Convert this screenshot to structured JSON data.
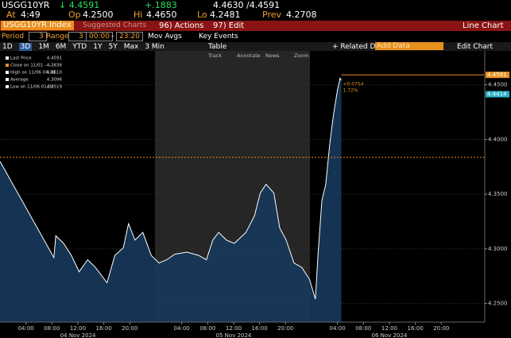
{
  "header": {
    "ticker": "USGG10YR",
    "price": "↓ 4.4591",
    "change": "+.1883",
    "bid_ask": "4.4630 /4.4591",
    "at_label": "At",
    "at": "4:49",
    "open_label": "Op",
    "open": "4.2500",
    "high_label": "Hi",
    "high": "4.4650",
    "low_label": "Lo",
    "low": "4.2481",
    "prev_label": "Prev",
    "prev": "4.2708"
  },
  "menu": {
    "security": "USGG10YR Index",
    "suggested": "Suggested Charts",
    "actions": "96) Actions",
    "edit": "97) Edit",
    "chart_type": "Line Chart"
  },
  "controls": {
    "period_label": "Period",
    "period": "3",
    "range_label": "Range",
    "range": "3",
    "start": "00:00",
    "dash": "-",
    "end": "23:20",
    "mov_avgs": "Mov Avgs",
    "key_events": "Key Events"
  },
  "toolbar": {
    "buttons": [
      "1D",
      "3D",
      "1M",
      "6M",
      "YTD",
      "1Y",
      "5Y",
      "Max",
      "3 Min"
    ],
    "table": "Table",
    "related": "+ Related Dat",
    "add_data": "Add Data",
    "edit_chart": "Edit Chart",
    "tools": [
      "Track",
      "Annotate",
      "News",
      "Zoom"
    ]
  },
  "chart_data": {
    "type": "line",
    "legend": [
      [
        "Last Price",
        "4.4591"
      ],
      [
        "Close on 11/01 ---- ",
        "4.3836"
      ],
      [
        "High on 11/06 04:39",
        "4.4610"
      ],
      [
        "Average",
        "4.3096"
      ],
      [
        "Low on 11/06 01:00",
        "4.2519"
      ]
    ],
    "x": [
      0,
      8.3,
      8.6,
      9.8,
      11.0,
      12.2,
      13.5,
      14.7,
      16.5,
      17.7,
      19.0,
      19.8,
      20.8,
      22.0,
      23.3,
      24.5,
      25.7,
      26.9,
      28.8,
      30.6,
      31.8,
      32.8,
      33.7,
      34.9,
      36.1,
      37.9,
      39.2,
      40.1,
      41.0,
      42.2,
      43.1,
      44.1,
      45.3,
      46.5,
      47.7,
      48.6,
      49.0,
      49.6,
      50.2,
      50.8,
      51.4,
      52.0,
      52.4,
      52.6
    ],
    "series": [
      {
        "name": "Last Price",
        "color": "#ffffff",
        "fill": "#17385c",
        "values": [
          4.38,
          4.292,
          4.312,
          4.305,
          4.294,
          4.279,
          4.29,
          4.283,
          4.269,
          4.294,
          4.301,
          4.323,
          4.308,
          4.315,
          4.294,
          4.287,
          4.29,
          4.295,
          4.297,
          4.294,
          4.29,
          4.308,
          4.315,
          4.308,
          4.305,
          4.315,
          4.33,
          4.351,
          4.359,
          4.351,
          4.319,
          4.308,
          4.287,
          4.283,
          4.272,
          4.254,
          4.294,
          4.344,
          4.359,
          4.395,
          4.423,
          4.445,
          4.456,
          4.454
        ]
      }
    ],
    "xlim": [
      0,
      74.7
    ],
    "ylim": [
      4.233,
      4.481
    ],
    "yticks": [
      {
        "value": 4.25,
        "label": "4.2500"
      },
      {
        "value": 4.3,
        "label": "4.3000"
      },
      {
        "value": 4.35,
        "label": "4.3500"
      },
      {
        "value": 4.4,
        "label": "4.4000"
      },
      {
        "value": 4.45,
        "label": "4.4500"
      }
    ],
    "xticks": [
      {
        "value": 4,
        "label": "04:00"
      },
      {
        "value": 8,
        "label": "08:00"
      },
      {
        "value": 12,
        "label": "12:00"
      },
      {
        "value": 16,
        "label": "16:00"
      },
      {
        "value": 20,
        "label": "20:00"
      },
      {
        "value": 28,
        "label": "04:00"
      },
      {
        "value": 32,
        "label": "08:00"
      },
      {
        "value": 36,
        "label": "12:00"
      },
      {
        "value": 40,
        "label": "16:00"
      },
      {
        "value": 44,
        "label": "20:00"
      },
      {
        "value": 52,
        "label": "04:00"
      },
      {
        "value": 56,
        "label": "08:00"
      },
      {
        "value": 60,
        "label": "12:00"
      },
      {
        "value": 64,
        "label": "16:00"
      },
      {
        "value": 68,
        "label": "20:00"
      }
    ],
    "date_labels": [
      {
        "text": "04 Nov 2024",
        "x": 12
      },
      {
        "text": "05 Nov 2024",
        "x": 36
      },
      {
        "text": "06 Nov 2024",
        "x": 60
      }
    ],
    "ref_lines": [
      {
        "value": 4.3836,
        "color": "#e8901e",
        "dashed": true
      },
      {
        "value": 4.4591,
        "color": "#e8901e",
        "dashed": false
      }
    ],
    "tags": [
      {
        "value": 4.4591,
        "label": "4.4591",
        "color": "#e8901e"
      },
      {
        "value": 4.4414,
        "label": "4.4414",
        "color": "#2ab0c8"
      }
    ],
    "last_change": [
      "+0.0754",
      "1.72%"
    ],
    "grid": true
  }
}
